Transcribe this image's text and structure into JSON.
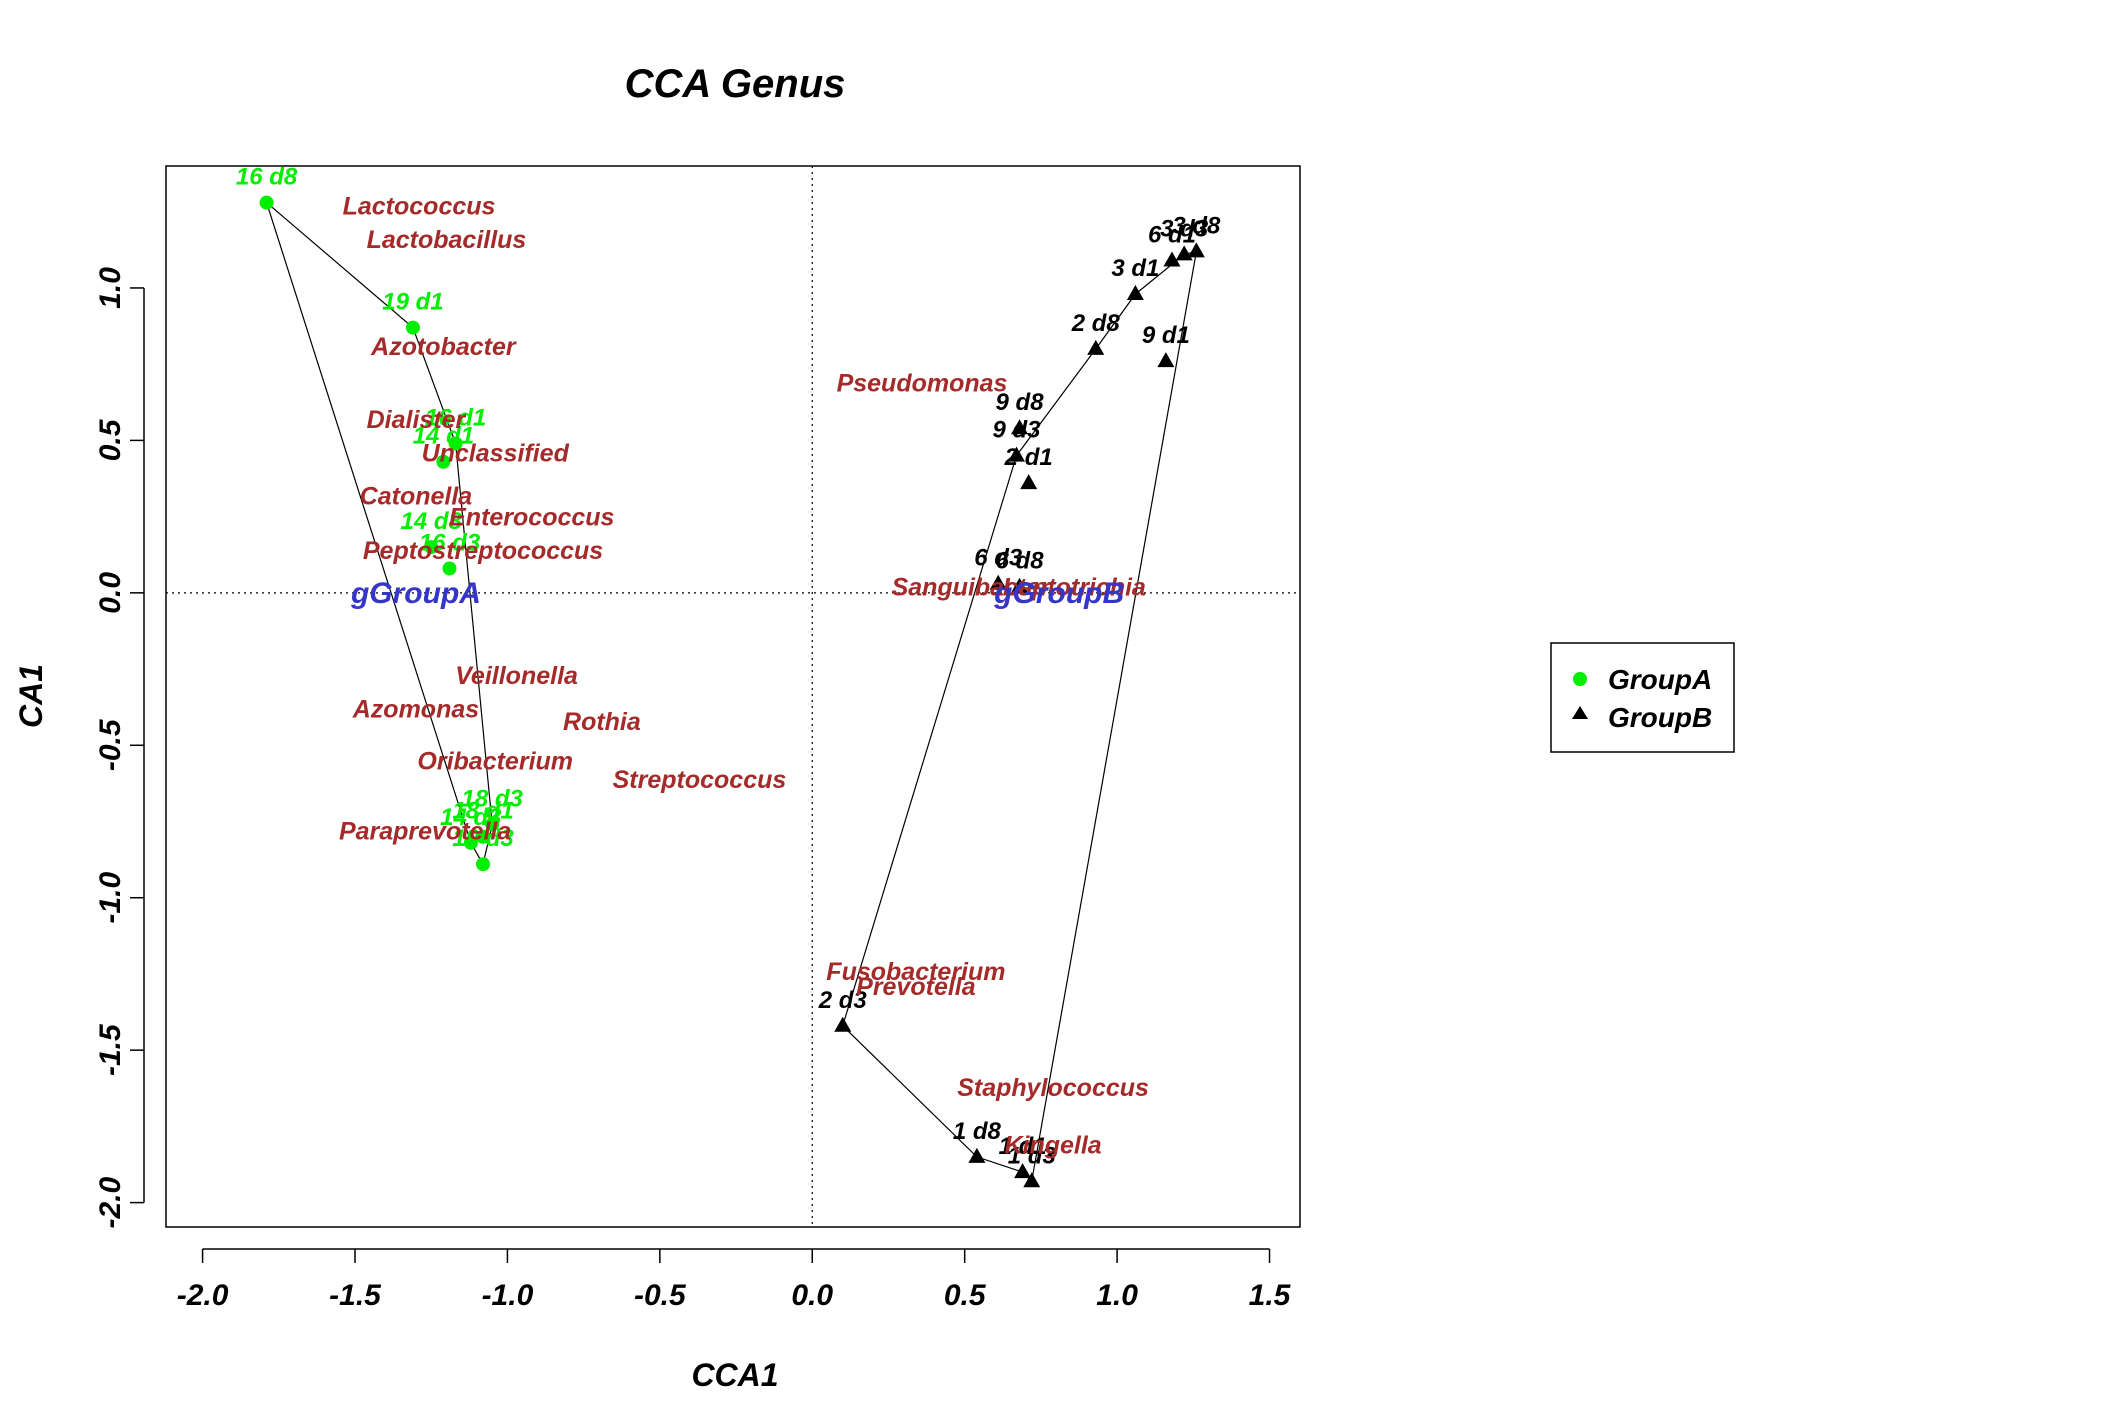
{
  "chart_data": {
    "type": "scatter",
    "title": "CCA Genus",
    "xlabel": "CCA1",
    "ylabel": "CA1",
    "xlim": [
      -2.12,
      1.6
    ],
    "ylim": [
      -2.08,
      1.4
    ],
    "x_ticks": [
      -2.0,
      -1.5,
      -1.0,
      -0.5,
      0.0,
      0.5,
      1.0,
      1.5
    ],
    "y_ticks": [
      -2.0,
      -1.5,
      -1.0,
      -0.5,
      0.0,
      0.5,
      1.0
    ],
    "reference_lines": {
      "x": 0,
      "y": 0,
      "style": "dotted"
    },
    "grid": false,
    "legend": {
      "position": "right",
      "entries": [
        {
          "label": "GroupA",
          "marker": "circle",
          "color": "#00ee00"
        },
        {
          "label": "GroupB",
          "marker": "triangle",
          "color": "#000000"
        }
      ]
    },
    "series": [
      {
        "name": "GroupA",
        "marker": "circle",
        "color": "#00ee00",
        "label_color": "#00ee00",
        "points": [
          {
            "label": "16 d8",
            "x": -1.79,
            "y": 1.28
          },
          {
            "label": "19 d1",
            "x": -1.31,
            "y": 0.87
          },
          {
            "label": "16 d1",
            "x": -1.17,
            "y": 0.49
          },
          {
            "label": "14 d1",
            "x": -1.21,
            "y": 0.43
          },
          {
            "label": "14 d8",
            "x": -1.25,
            "y": 0.15
          },
          {
            "label": "16 d3",
            "x": -1.19,
            "y": 0.08
          },
          {
            "label": "18 d3",
            "x": -1.05,
            "y": -0.76
          },
          {
            "label": "14 d3",
            "x": -1.12,
            "y": -0.82
          },
          {
            "label": "18 d1",
            "x": -1.08,
            "y": -0.8
          },
          {
            "label": "19 d3",
            "x": -1.08,
            "y": -0.89
          }
        ],
        "hull": [
          [
            -1.79,
            1.28
          ],
          [
            -1.31,
            0.87
          ],
          [
            -1.17,
            0.49
          ],
          [
            -1.05,
            -0.76
          ],
          [
            -1.08,
            -0.89
          ],
          [
            -1.12,
            -0.82
          ]
        ]
      },
      {
        "name": "GroupB",
        "marker": "triangle",
        "color": "#000000",
        "label_color": "#000000",
        "points": [
          {
            "label": "3 d8",
            "x": 1.26,
            "y": 1.12
          },
          {
            "label": "3 d3",
            "x": 1.22,
            "y": 1.11
          },
          {
            "label": "6 d1",
            "x": 1.18,
            "y": 1.09
          },
          {
            "label": "3 d1",
            "x": 1.06,
            "y": 0.98
          },
          {
            "label": "2 d8",
            "x": 0.93,
            "y": 0.8
          },
          {
            "label": "9 d1",
            "x": 1.16,
            "y": 0.76
          },
          {
            "label": "9 d8",
            "x": 0.68,
            "y": 0.54
          },
          {
            "label": "9 d3",
            "x": 0.67,
            "y": 0.45
          },
          {
            "label": "2 d1",
            "x": 0.71,
            "y": 0.36
          },
          {
            "label": "6 d3",
            "x": 0.61,
            "y": 0.03
          },
          {
            "label": "6 d8",
            "x": 0.68,
            "y": 0.02
          },
          {
            "label": "2 d3",
            "x": 0.1,
            "y": -1.42
          },
          {
            "label": "1 d8",
            "x": 0.54,
            "y": -1.85
          },
          {
            "label": "1 d1",
            "x": 0.69,
            "y": -1.9
          },
          {
            "label": "1 d3",
            "x": 0.72,
            "y": -1.93
          }
        ],
        "hull": [
          [
            1.26,
            1.12
          ],
          [
            1.22,
            1.11
          ],
          [
            1.06,
            0.98
          ],
          [
            0.93,
            0.8
          ],
          [
            0.67,
            0.45
          ],
          [
            0.1,
            -1.42
          ],
          [
            0.54,
            -1.85
          ],
          [
            0.69,
            -1.9
          ],
          [
            0.72,
            -1.93
          ]
        ]
      }
    ],
    "taxa": [
      {
        "label": "Lactococcus",
        "x": -1.29,
        "y": 1.27
      },
      {
        "label": "Lactobacillus",
        "x": -1.2,
        "y": 1.16
      },
      {
        "label": "Azotobacter",
        "x": -1.21,
        "y": 0.81
      },
      {
        "label": "Dialister",
        "x": -1.3,
        "y": 0.57
      },
      {
        "label": "Unclassified",
        "x": -1.04,
        "y": 0.46
      },
      {
        "label": "Catonella",
        "x": -1.3,
        "y": 0.32
      },
      {
        "label": "Enterococcus",
        "x": -0.92,
        "y": 0.25
      },
      {
        "label": "Peptostreptococcus",
        "x": -1.08,
        "y": 0.14
      },
      {
        "label": "Veillonella",
        "x": -0.97,
        "y": -0.27
      },
      {
        "label": "Azomonas",
        "x": -1.3,
        "y": -0.38
      },
      {
        "label": "Rothia",
        "x": -0.69,
        "y": -0.42
      },
      {
        "label": "Oribacterium",
        "x": -1.04,
        "y": -0.55
      },
      {
        "label": "Streptococcus",
        "x": -0.37,
        "y": -0.61
      },
      {
        "label": "Paraprevotella",
        "x": -1.27,
        "y": -0.78
      },
      {
        "label": "Pseudomonas",
        "x": 0.36,
        "y": 0.69
      },
      {
        "label": "Sanguibacter",
        "x": 0.52,
        "y": 0.02
      },
      {
        "label": "Leptotrichia",
        "x": 0.86,
        "y": 0.02
      },
      {
        "label": "Fusobacterium",
        "x": 0.34,
        "y": -1.24
      },
      {
        "label": "Prevotella",
        "x": 0.34,
        "y": -1.29
      },
      {
        "label": "Staphylococcus",
        "x": 0.79,
        "y": -1.62
      },
      {
        "label": "Kingella",
        "x": 0.79,
        "y": -1.81
      }
    ],
    "centroids": [
      {
        "label": "gGroupA",
        "x": -1.3,
        "y": 0.0
      },
      {
        "label": "gGroupB",
        "x": 0.81,
        "y": 0.0
      }
    ]
  }
}
